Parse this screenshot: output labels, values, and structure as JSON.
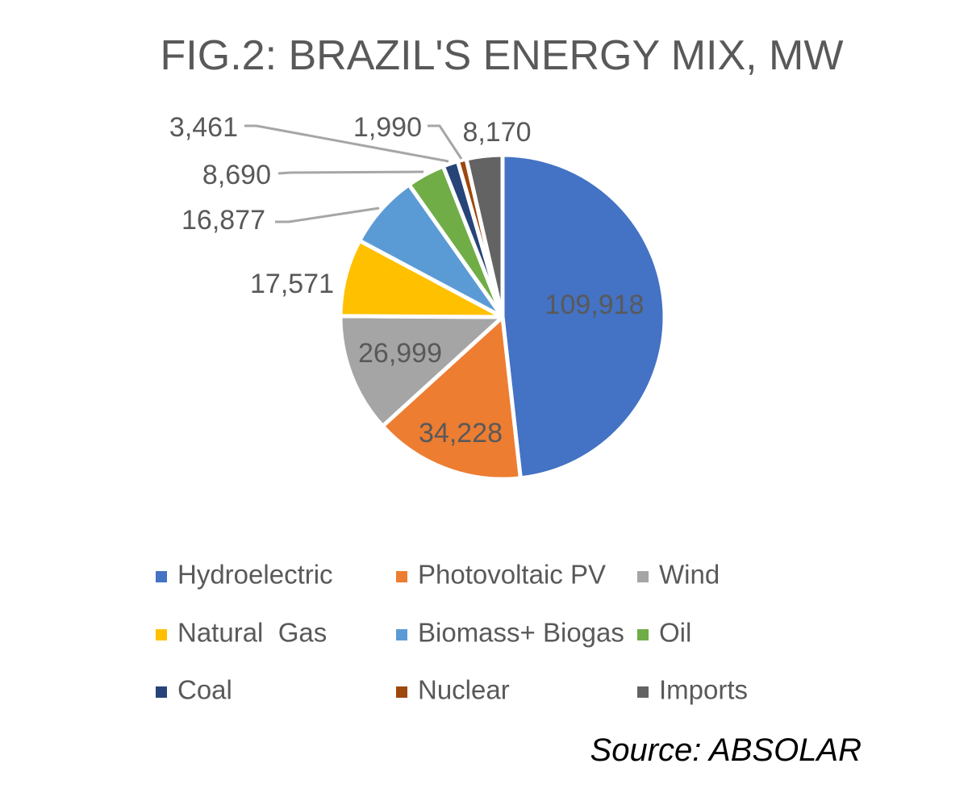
{
  "chart_data": {
    "type": "pie",
    "title": "FIG.2: BRAZIL'S ENERGY MIX, MW",
    "source": "Source: ABSOLAR",
    "legend_position": "bottom",
    "slices": [
      {
        "name": "Hydroelectric",
        "value": 109918,
        "label": "109,918",
        "color": "#4472C4"
      },
      {
        "name": "Photovoltaic PV",
        "value": 34228,
        "label": "34,228",
        "color": "#ED7D31"
      },
      {
        "name": "Wind",
        "value": 26999,
        "label": "26,999",
        "color": "#A5A5A5"
      },
      {
        "name": "Natural  Gas",
        "value": 17571,
        "label": "17,571",
        "color": "#FFC000"
      },
      {
        "name": "Biomass+ Biogas",
        "value": 16877,
        "label": "16,877",
        "color": "#5B9BD5"
      },
      {
        "name": "Oil",
        "value": 8690,
        "label": "8,690",
        "color": "#70AD47"
      },
      {
        "name": "Coal",
        "value": 3461,
        "label": "3,461",
        "color": "#264478"
      },
      {
        "name": "Nuclear",
        "value": 1990,
        "label": "1,990",
        "color": "#9E480E"
      },
      {
        "name": "Imports",
        "value": 8170,
        "label": "8,170",
        "color": "#636363"
      }
    ]
  }
}
